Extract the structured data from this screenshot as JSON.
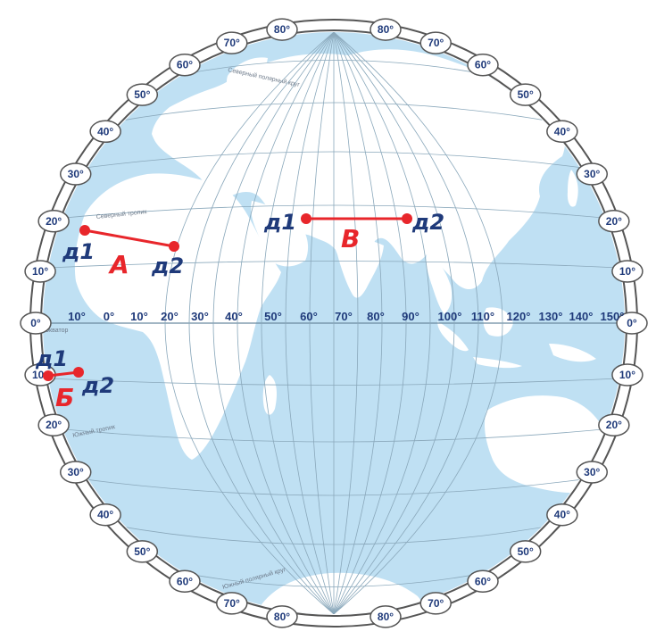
{
  "map": {
    "latitude_labels": {
      "left_top": [
        "80°",
        "70°",
        "60°",
        "50°",
        "40°",
        "30°",
        "20°",
        "10°"
      ],
      "equator": "0°",
      "left_bottom": [
        "10°",
        "20°",
        "30°",
        "40°",
        "50°",
        "60°",
        "70°",
        "80°"
      ],
      "right_top": [
        "80°",
        "70°",
        "60°",
        "50°",
        "40°",
        "30°",
        "20°",
        "10°"
      ],
      "right_bottom": [
        "10°",
        "20°",
        "30°",
        "40°",
        "50°",
        "60°",
        "70°",
        "80°"
      ]
    },
    "longitude_labels": [
      "10°",
      "0°",
      "10°",
      "20°",
      "30°",
      "40°",
      "50°",
      "60°",
      "70°",
      "80°",
      "90°",
      "100°",
      "110°",
      "120°",
      "130°",
      "140°",
      "150°"
    ],
    "colors": {
      "ocean": "#bfe0f3",
      "land": "#ffffff",
      "grid": "#8aa8bb",
      "marker": "#e8262b",
      "label": "#1f3a7a"
    },
    "small_labels": {
      "tropic_north": "Северный тропик",
      "tropic_south": "Южный тропик",
      "equator": "Экватор",
      "arctic": "Северный полярный круг",
      "antarctic": "Южный полярный круг"
    }
  },
  "segments": {
    "A": {
      "name": "А",
      "p1": "д1",
      "p2": "д2"
    },
    "B": {
      "name": "Б",
      "p1": "д1",
      "p2": "д2"
    },
    "C": {
      "name": "В",
      "p1": "д1",
      "p2": "д2"
    }
  }
}
